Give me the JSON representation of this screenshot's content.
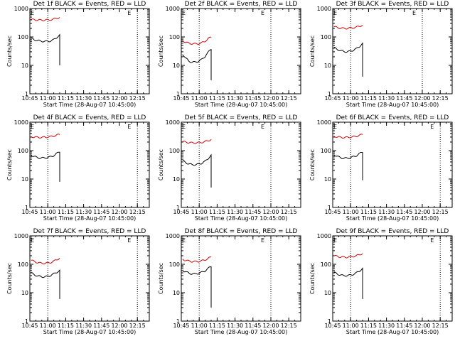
{
  "chart_data": [
    {
      "type": "line",
      "title": "Det 1f BLACK = Events, RED = LLD",
      "xlabel": "Start Time (28-Aug-07 10:45:00)",
      "ylabel": "Counts/sec",
      "yscale": "log",
      "ylim": [
        1,
        1000
      ],
      "x_ticks": [
        "10:45",
        "11:00",
        "11:15",
        "11:30",
        "11:45",
        "12:00",
        "12:15"
      ],
      "y_ticks": [
        "1",
        "10",
        "100",
        "1000"
      ],
      "marker_label": "E",
      "series": [
        {
          "color": "#d00000",
          "start": "10:46",
          "end": "11:10",
          "values": [
            410,
            405,
            395,
            390,
            392,
            395,
            400,
            420,
            460,
            480
          ]
        },
        {
          "color": "#000000",
          "start": "10:46",
          "end": "11:10",
          "values": [
            90,
            80,
            75,
            72,
            70,
            70,
            72,
            78,
            95,
            115
          ],
          "drop_to": 10
        }
      ],
      "dotted_x": [
        "11:00",
        "12:15"
      ]
    },
    {
      "type": "line",
      "title": "Det 2f BLACK = Events, RED = LLD",
      "xlabel": "Start Time (28-Aug-07 10:45:00)",
      "ylabel": "Counts/sec",
      "yscale": "log",
      "ylim": [
        1,
        1000
      ],
      "x_ticks": [
        "10:45",
        "11:00",
        "11:15",
        "11:30",
        "11:45",
        "12:00",
        "12:15"
      ],
      "y_ticks": [
        "1",
        "10",
        "100",
        "1000"
      ],
      "marker_label": "E",
      "series": [
        {
          "color": "#d00000",
          "start": "10:46",
          "end": "11:10",
          "values": [
            75,
            65,
            60,
            58,
            57,
            58,
            62,
            70,
            85,
            100
          ]
        },
        {
          "color": "#000000",
          "start": "10:46",
          "end": "11:10",
          "values": [
            25,
            18,
            14,
            13,
            13,
            14,
            16,
            20,
            28,
            38
          ],
          "drop_to": 3
        }
      ],
      "dotted_x": [
        "11:00",
        "12:00"
      ]
    },
    {
      "type": "line",
      "title": "Det 3f BLACK = Events, RED = LLD",
      "xlabel": "Start Time (28-Aug-07 10:45:00)",
      "ylabel": "Counts/sec",
      "yscale": "log",
      "ylim": [
        1,
        1000
      ],
      "x_ticks": [
        "10:45",
        "11:00",
        "11:15",
        "11:30",
        "11:45",
        "12:00",
        "12:15"
      ],
      "y_ticks": [
        "1",
        "10",
        "100",
        "1000"
      ],
      "marker_label": "E",
      "series": [
        {
          "color": "#d00000",
          "start": "10:46",
          "end": "11:10",
          "values": [
            230,
            215,
            205,
            200,
            200,
            205,
            210,
            220,
            240,
            260
          ]
        },
        {
          "color": "#000000",
          "start": "10:46",
          "end": "11:10",
          "values": [
            42,
            37,
            33,
            31,
            30,
            31,
            34,
            38,
            46,
            58
          ],
          "drop_to": 4
        }
      ],
      "dotted_x": [
        "11:00",
        "12:00"
      ]
    },
    {
      "type": "line",
      "title": "Det 4f BLACK = Events, RED = LLD",
      "xlabel": "Start Time (28-Aug-07 10:45:00)",
      "ylabel": "Counts/sec",
      "yscale": "log",
      "ylim": [
        1,
        1000
      ],
      "x_ticks": [
        "10:45",
        "11:00",
        "11:15",
        "11:30",
        "11:45",
        "12:00",
        "12:15"
      ],
      "y_ticks": [
        "1",
        "10",
        "100",
        "1000"
      ],
      "marker_label": "E",
      "series": [
        {
          "color": "#d00000",
          "start": "10:46",
          "end": "11:10",
          "values": [
            310,
            300,
            295,
            292,
            295,
            300,
            310,
            325,
            350,
            370
          ]
        },
        {
          "color": "#000000",
          "start": "10:46",
          "end": "11:10",
          "values": [
            70,
            62,
            57,
            55,
            55,
            57,
            60,
            66,
            78,
            92
          ],
          "drop_to": 8
        }
      ],
      "dotted_x": [
        "11:00",
        "12:15"
      ]
    },
    {
      "type": "line",
      "title": "Det 5f BLACK = Events, RED = LLD",
      "xlabel": "Start Time (28-Aug-07 10:45:00)",
      "ylabel": "Counts/sec",
      "yscale": "log",
      "ylim": [
        1,
        1000
      ],
      "x_ticks": [
        "10:45",
        "11:00",
        "11:15",
        "11:30",
        "11:45",
        "12:00",
        "12:15"
      ],
      "y_ticks": [
        "1",
        "10",
        "100",
        "1000"
      ],
      "marker_label": "E",
      "series": [
        {
          "color": "#d00000",
          "start": "10:46",
          "end": "11:10",
          "values": [
            210,
            200,
            192,
            188,
            188,
            190,
            195,
            205,
            225,
            245
          ]
        },
        {
          "color": "#000000",
          "start": "10:46",
          "end": "11:10",
          "values": [
            45,
            38,
            34,
            32,
            32,
            33,
            36,
            41,
            52,
            68
          ],
          "drop_to": 5
        }
      ],
      "dotted_x": [
        "11:00",
        "12:00"
      ]
    },
    {
      "type": "line",
      "title": "Det 6f BLACK = Events, RED = LLD",
      "xlabel": "Start Time (28-Aug-07 10:45:00)",
      "ylabel": "Counts/sec",
      "yscale": "log",
      "ylim": [
        1,
        1000
      ],
      "x_ticks": [
        "10:45",
        "11:00",
        "11:15",
        "11:30",
        "11:45",
        "12:00",
        "12:15"
      ],
      "y_ticks": [
        "1",
        "10",
        "100",
        "1000"
      ],
      "marker_label": "E",
      "series": [
        {
          "color": "#d00000",
          "start": "10:46",
          "end": "11:10",
          "values": [
            320,
            305,
            295,
            290,
            292,
            298,
            305,
            320,
            345,
            370
          ]
        },
        {
          "color": "#000000",
          "start": "10:46",
          "end": "11:10",
          "values": [
            72,
            63,
            57,
            54,
            54,
            56,
            60,
            66,
            78,
            90
          ],
          "drop_to": 9
        }
      ],
      "dotted_x": [
        "11:00",
        "12:15"
      ]
    },
    {
      "type": "line",
      "title": "Det 7f BLACK = Events, RED = LLD",
      "xlabel": "Start Time (28-Aug-07 10:45:00)",
      "ylabel": "Counts/sec",
      "yscale": "log",
      "ylim": [
        1,
        1000
      ],
      "x_ticks": [
        "10:45",
        "11:00",
        "11:15",
        "11:30",
        "11:45",
        "12:00",
        "12:15"
      ],
      "y_ticks": [
        "1",
        "10",
        "100",
        "1000"
      ],
      "marker_label": "E",
      "series": [
        {
          "color": "#d00000",
          "start": "10:46",
          "end": "11:10",
          "values": [
            140,
            125,
            115,
            110,
            108,
            110,
            115,
            125,
            145,
            165
          ]
        },
        {
          "color": "#000000",
          "start": "10:46",
          "end": "11:10",
          "values": [
            50,
            43,
            39,
            37,
            36,
            37,
            40,
            45,
            52,
            60
          ],
          "drop_to": 6
        }
      ],
      "dotted_x": [
        "11:00",
        "12:15"
      ]
    },
    {
      "type": "line",
      "title": "Det 8f BLACK = Events, RED = LLD",
      "xlabel": "Start Time (28-Aug-07 10:45:00)",
      "ylabel": "Counts/sec",
      "yscale": "log",
      "ylim": [
        1,
        1000
      ],
      "x_ticks": [
        "10:45",
        "11:00",
        "11:15",
        "11:30",
        "11:45",
        "12:00",
        "12:15"
      ],
      "y_ticks": [
        "1",
        "10",
        "100",
        "1000"
      ],
      "marker_label": "E",
      "series": [
        {
          "color": "#d00000",
          "start": "10:46",
          "end": "11:10",
          "values": [
            150,
            138,
            130,
            125,
            124,
            126,
            132,
            142,
            160,
            180
          ]
        },
        {
          "color": "#000000",
          "start": "10:46",
          "end": "11:10",
          "values": [
            62,
            54,
            49,
            46,
            46,
            48,
            52,
            58,
            70,
            85
          ],
          "drop_to": 3
        }
      ],
      "dotted_x": [
        "11:00",
        "12:00"
      ]
    },
    {
      "type": "line",
      "title": "Det 9f BLACK = Events, RED = LLD",
      "xlabel": "Start Time (28-Aug-07 10:45:00)",
      "ylabel": "Counts/sec",
      "yscale": "log",
      "ylim": [
        1,
        1000
      ],
      "x_ticks": [
        "10:45",
        "11:00",
        "11:15",
        "11:30",
        "11:45",
        "12:00",
        "12:15"
      ],
      "y_ticks": [
        "1",
        "10",
        "100",
        "1000"
      ],
      "marker_label": "E",
      "series": [
        {
          "color": "#d00000",
          "start": "10:46",
          "end": "11:10",
          "values": [
            200,
            190,
            182,
            178,
            178,
            182,
            188,
            198,
            218,
            240
          ]
        },
        {
          "color": "#000000",
          "start": "10:46",
          "end": "11:10",
          "values": [
            52,
            46,
            42,
            40,
            40,
            41,
            44,
            49,
            58,
            70
          ],
          "drop_to": 6
        }
      ],
      "dotted_x": [
        "11:00",
        "12:15"
      ]
    }
  ]
}
